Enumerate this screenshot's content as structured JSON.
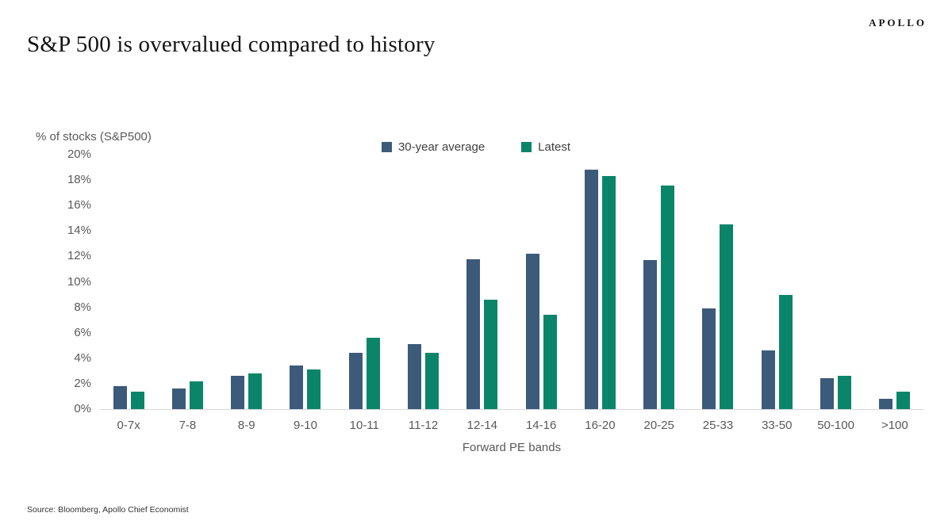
{
  "page": {
    "logo": "APOLLO",
    "title": "S&P 500 is overvalued compared to history",
    "source": "Source: Bloomberg, Apollo Chief Economist"
  },
  "chart_data": {
    "type": "bar",
    "title": "S&P 500 is overvalued compared to history",
    "y_axis_title": "% of stocks (S&P500)",
    "x_axis_title": "Forward PE bands",
    "categories": [
      "0-7x",
      "7-8",
      "8-9",
      "9-10",
      "10-11",
      "11-12",
      "12-14",
      "14-16",
      "16-20",
      "20-25",
      "25-33",
      "33-50",
      "50-100",
      ">100"
    ],
    "series": [
      {
        "name": "30-year average",
        "color": "#3C5A7A",
        "values": [
          1.8,
          1.6,
          2.6,
          3.4,
          4.4,
          5.1,
          11.8,
          12.2,
          18.8,
          11.7,
          7.9,
          4.6,
          2.4,
          0.8
        ]
      },
      {
        "name": "Latest",
        "color": "#0B8569",
        "values": [
          1.4,
          2.2,
          2.8,
          3.1,
          5.6,
          4.4,
          8.6,
          7.4,
          18.3,
          17.6,
          14.5,
          9.0,
          2.6,
          1.4
        ]
      }
    ],
    "ylim": [
      0,
      20
    ],
    "y_tick_step": 2,
    "y_tick_suffix": "%",
    "grid": false,
    "legend_position": "top-center",
    "baseline_color": "#d9d9d9"
  }
}
